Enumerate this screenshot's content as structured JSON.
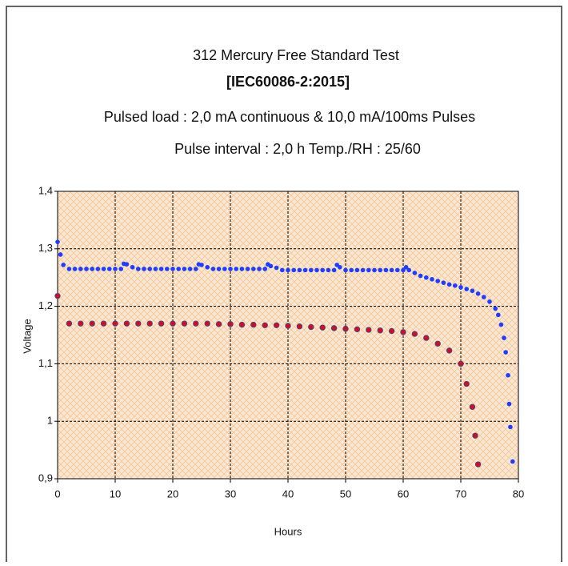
{
  "chart_data": {
    "type": "scatter",
    "title": "312 Mercury Free Standard  Test",
    "subtitles": [
      "[IEC60086-2:2015]",
      "Pulsed load : 2,0 mA  continuous & 10,0 mA/100ms  Pulses",
      "Pulse interval : 2,0 h    Temp./RH  : 25/60"
    ],
    "xlabel": "Hours",
    "ylabel": "Voltage",
    "xlim": [
      0,
      80
    ],
    "xticks": [
      0,
      10,
      20,
      30,
      40,
      50,
      60,
      70,
      80
    ],
    "ylim": [
      0.9,
      1.4
    ],
    "yticks": [
      {
        "value": 0.9,
        "label": "0,9"
      },
      {
        "value": 1.0,
        "label": "1"
      },
      {
        "value": 1.1,
        "label": "1,1"
      },
      {
        "value": 1.2,
        "label": "1,2"
      },
      {
        "value": 1.3,
        "label": "1,3"
      },
      {
        "value": 1.4,
        "label": "1,4"
      }
    ],
    "grid": true,
    "series": [
      {
        "color": "#1f3dff",
        "x": [
          0,
          0.5,
          1,
          2,
          3,
          4,
          5,
          6,
          7,
          8,
          9,
          10,
          11,
          11.5,
          12,
          13,
          14,
          15,
          16,
          17,
          18,
          19,
          20,
          21,
          22,
          23,
          24,
          24.5,
          25,
          26,
          27,
          28,
          29,
          30,
          31,
          32,
          33,
          34,
          35,
          36,
          36.5,
          37,
          38,
          39,
          40,
          41,
          42,
          43,
          44,
          45,
          46,
          47,
          48,
          48.5,
          49,
          50,
          51,
          52,
          53,
          54,
          55,
          56,
          57,
          58,
          59,
          60,
          60.5,
          61,
          62,
          63,
          64,
          65,
          66,
          67,
          68,
          69,
          70,
          71,
          72,
          73,
          74,
          75,
          76,
          76.5,
          77,
          77.5,
          77.8,
          78.2,
          78.4,
          78.6,
          79
        ],
        "values": [
          1.312,
          1.29,
          1.272,
          1.265,
          1.265,
          1.265,
          1.265,
          1.265,
          1.265,
          1.265,
          1.265,
          1.265,
          1.265,
          1.274,
          1.273,
          1.268,
          1.265,
          1.265,
          1.265,
          1.265,
          1.265,
          1.265,
          1.265,
          1.265,
          1.265,
          1.265,
          1.265,
          1.273,
          1.272,
          1.268,
          1.265,
          1.265,
          1.265,
          1.265,
          1.265,
          1.265,
          1.265,
          1.265,
          1.265,
          1.265,
          1.273,
          1.27,
          1.267,
          1.263,
          1.263,
          1.263,
          1.263,
          1.263,
          1.263,
          1.263,
          1.263,
          1.263,
          1.263,
          1.272,
          1.268,
          1.263,
          1.263,
          1.263,
          1.263,
          1.263,
          1.263,
          1.263,
          1.263,
          1.263,
          1.263,
          1.263,
          1.268,
          1.263,
          1.258,
          1.253,
          1.25,
          1.247,
          1.244,
          1.241,
          1.238,
          1.236,
          1.233,
          1.23,
          1.227,
          1.222,
          1.216,
          1.208,
          1.196,
          1.185,
          1.168,
          1.145,
          1.12,
          1.08,
          1.03,
          0.99,
          0.93
        ]
      },
      {
        "color": "#cc1020",
        "x": [
          0,
          2,
          4,
          6,
          8,
          10,
          12,
          14,
          16,
          18,
          20,
          22,
          24,
          26,
          28,
          30,
          32,
          34,
          36,
          38,
          40,
          42,
          44,
          46,
          48,
          50,
          52,
          54,
          56,
          58,
          60,
          62,
          64,
          66,
          68,
          70,
          71,
          72,
          72.5,
          73
        ],
        "values": [
          1.218,
          1.17,
          1.17,
          1.17,
          1.17,
          1.17,
          1.17,
          1.17,
          1.17,
          1.17,
          1.17,
          1.17,
          1.17,
          1.17,
          1.169,
          1.169,
          1.168,
          1.168,
          1.167,
          1.167,
          1.166,
          1.165,
          1.164,
          1.163,
          1.162,
          1.161,
          1.16,
          1.159,
          1.158,
          1.157,
          1.155,
          1.152,
          1.145,
          1.135,
          1.123,
          1.1,
          1.065,
          1.025,
          0.975,
          0.925
        ]
      }
    ]
  }
}
